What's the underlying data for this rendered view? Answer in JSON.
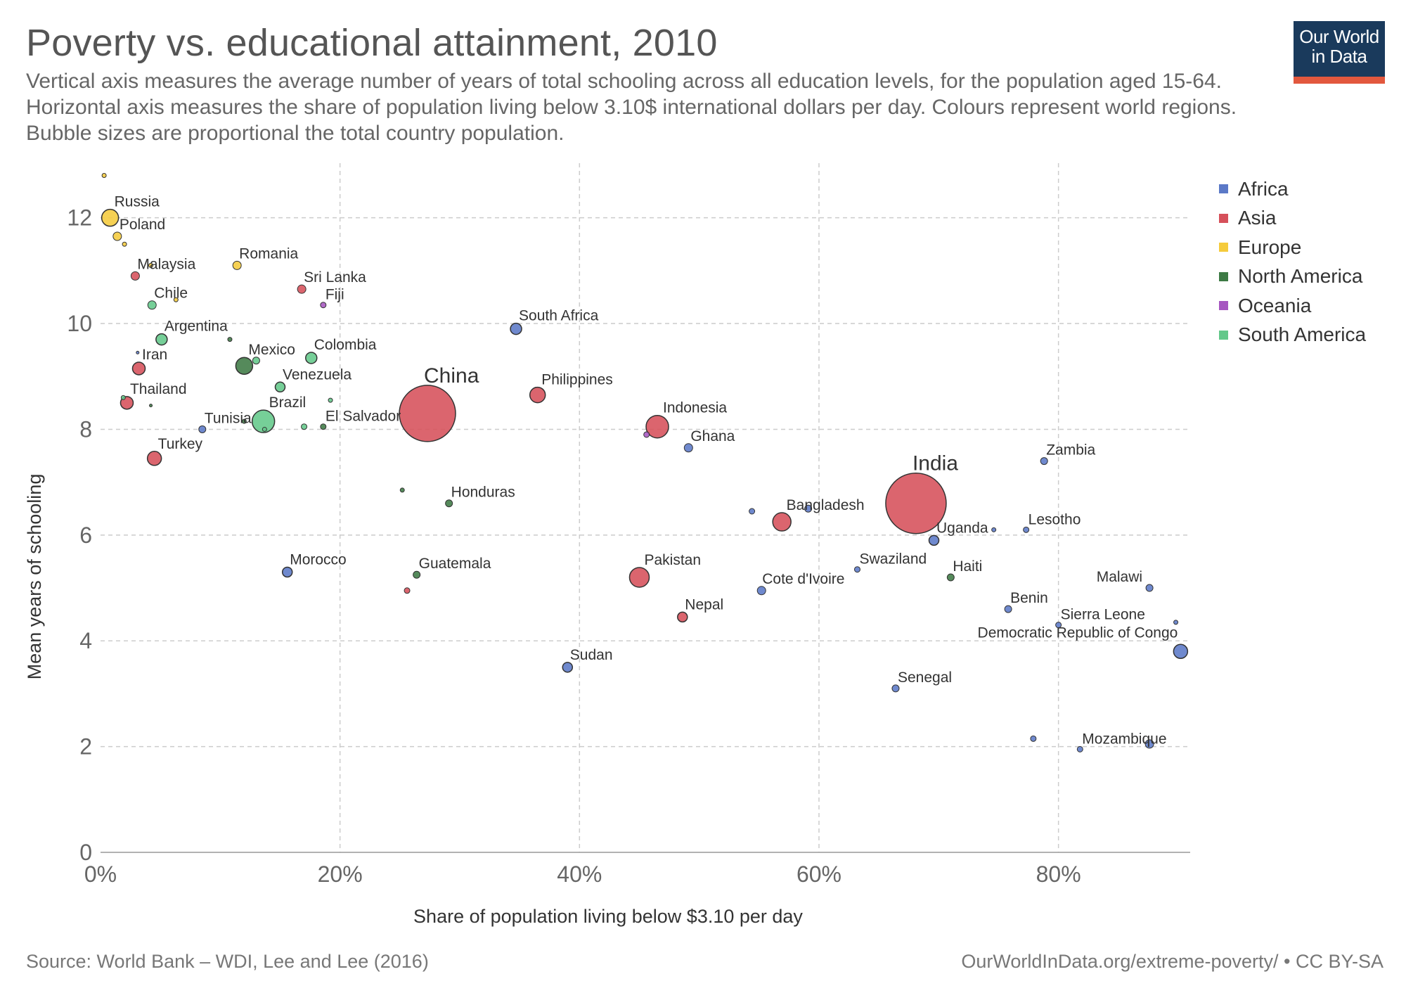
{
  "header": {
    "title": "Poverty vs. educational attainment, 2010",
    "subtitle": "Vertical axis measures the average number of years of total schooling across all education levels, for the population aged 15-64. Horizontal axis measures the share of population living below 3.10$ international dollars per day. Colours represent world regions. Bubble sizes are proportional the total country population.",
    "logo_line1": "Our World",
    "logo_line2": "in Data"
  },
  "footer": {
    "source": "Source: World Bank – WDI, Lee and Lee (2016)",
    "license": "OurWorldInData.org/extreme-poverty/ • CC BY-SA"
  },
  "colors": {
    "Africa": "#5b79c7",
    "Asia": "#d6505a",
    "Europe": "#f5cb3c",
    "North America": "#3d7a44",
    "Oceania": "#a656c0",
    "South America": "#63c88a"
  },
  "chart_data": {
    "type": "scatter",
    "title": "Poverty vs. educational attainment, 2010",
    "xlabel": "Share of population living below $3.10 per day",
    "ylabel": "Mean years of schooling",
    "xlim": [
      0,
      91
    ],
    "ylim": [
      0,
      12.9
    ],
    "x_ticks": [
      0,
      20,
      40,
      60,
      80
    ],
    "x_tick_labels": [
      "0%",
      "20%",
      "40%",
      "60%",
      "80%"
    ],
    "y_ticks": [
      0,
      2,
      4,
      6,
      8,
      10,
      12
    ],
    "y_tick_labels": [
      "0",
      "2",
      "4",
      "6",
      "8",
      "10",
      "12"
    ],
    "grid": true,
    "legend_position": "right",
    "legend": [
      "Africa",
      "Asia",
      "Europe",
      "North America",
      "Oceania",
      "South America"
    ],
    "points": [
      {
        "label": "",
        "x": 0.3,
        "y": 12.8,
        "region": "Europe",
        "r": 3
      },
      {
        "label": "Russia",
        "x": 0.8,
        "y": 12.0,
        "region": "Europe",
        "r": 12
      },
      {
        "label": "Poland",
        "x": 1.4,
        "y": 11.65,
        "region": "Europe",
        "r": 6
      },
      {
        "label": "",
        "x": 2.0,
        "y": 11.5,
        "region": "Europe",
        "r": 3
      },
      {
        "label": "Malaysia",
        "x": 2.9,
        "y": 10.9,
        "region": "Asia",
        "r": 6
      },
      {
        "label": "",
        "x": 4.2,
        "y": 11.1,
        "region": "Europe",
        "r": 3
      },
      {
        "label": "Romania",
        "x": 11.4,
        "y": 11.1,
        "region": "Europe",
        "r": 6
      },
      {
        "label": "Chile",
        "x": 4.3,
        "y": 10.35,
        "region": "South America",
        "r": 6
      },
      {
        "label": "",
        "x": 6.3,
        "y": 10.45,
        "region": "Europe",
        "r": 3
      },
      {
        "label": "Sri Lanka",
        "x": 16.8,
        "y": 10.65,
        "region": "Asia",
        "r": 6
      },
      {
        "label": "Fiji",
        "x": 18.6,
        "y": 10.35,
        "region": "Oceania",
        "r": 4
      },
      {
        "label": "Argentina",
        "x": 5.1,
        "y": 9.7,
        "region": "South America",
        "r": 8
      },
      {
        "label": "",
        "x": 10.8,
        "y": 9.7,
        "region": "North America",
        "r": 3
      },
      {
        "label": "",
        "x": 3.1,
        "y": 9.45,
        "region": "Africa",
        "r": 2
      },
      {
        "label": "Iran",
        "x": 3.2,
        "y": 9.15,
        "region": "Asia",
        "r": 9
      },
      {
        "label": "Mexico",
        "x": 12.0,
        "y": 9.2,
        "region": "North America",
        "r": 12
      },
      {
        "label": "",
        "x": 13.0,
        "y": 9.3,
        "region": "South America",
        "r": 5
      },
      {
        "label": "Colombia",
        "x": 17.6,
        "y": 9.35,
        "region": "South America",
        "r": 8
      },
      {
        "label": "Venezuela",
        "x": 15.0,
        "y": 8.8,
        "region": "South America",
        "r": 7
      },
      {
        "label": "",
        "x": 19.2,
        "y": 8.55,
        "region": "South America",
        "r": 3
      },
      {
        "label": "Thailand",
        "x": 2.2,
        "y": 8.5,
        "region": "Asia",
        "r": 9
      },
      {
        "label": "",
        "x": 1.9,
        "y": 8.6,
        "region": "South America",
        "r": 3
      },
      {
        "label": "",
        "x": 4.2,
        "y": 8.45,
        "region": "North America",
        "r": 2
      },
      {
        "label": "China",
        "x": 27.3,
        "y": 8.3,
        "region": "Asia",
        "r": 40
      },
      {
        "label": "Philippines",
        "x": 36.5,
        "y": 8.65,
        "region": "Asia",
        "r": 11
      },
      {
        "label": "Brazil",
        "x": 13.6,
        "y": 8.15,
        "region": "South America",
        "r": 16
      },
      {
        "label": "",
        "x": 12.0,
        "y": 8.15,
        "region": "North America",
        "r": 3
      },
      {
        "label": "Tunisia",
        "x": 8.5,
        "y": 8.0,
        "region": "Africa",
        "r": 5
      },
      {
        "label": "",
        "x": 13.7,
        "y": 8.0,
        "region": "South America",
        "r": 3
      },
      {
        "label": "",
        "x": 17.0,
        "y": 8.05,
        "region": "South America",
        "r": 4
      },
      {
        "label": "El Salvador",
        "x": 18.6,
        "y": 8.05,
        "region": "North America",
        "r": 4
      },
      {
        "label": "Indonesia",
        "x": 46.5,
        "y": 8.05,
        "region": "Asia",
        "r": 16
      },
      {
        "label": "",
        "x": 45.6,
        "y": 7.9,
        "region": "Oceania",
        "r": 4
      },
      {
        "label": "Ghana",
        "x": 49.1,
        "y": 7.65,
        "region": "Africa",
        "r": 6
      },
      {
        "label": "Turkey",
        "x": 4.5,
        "y": 7.45,
        "region": "Asia",
        "r": 10
      },
      {
        "label": "South Africa",
        "x": 34.7,
        "y": 9.9,
        "region": "Africa",
        "r": 8
      },
      {
        "label": "Zambia",
        "x": 78.8,
        "y": 7.4,
        "region": "Africa",
        "r": 5
      },
      {
        "label": "",
        "x": 25.2,
        "y": 6.85,
        "region": "North America",
        "r": 3
      },
      {
        "label": "Honduras",
        "x": 29.1,
        "y": 6.6,
        "region": "North America",
        "r": 5
      },
      {
        "label": "India",
        "x": 68.1,
        "y": 6.6,
        "region": "Asia",
        "r": 43
      },
      {
        "label": "Bangladesh",
        "x": 56.9,
        "y": 6.25,
        "region": "Asia",
        "r": 13
      },
      {
        "label": "",
        "x": 54.4,
        "y": 6.45,
        "region": "Africa",
        "r": 4
      },
      {
        "label": "",
        "x": 59.1,
        "y": 6.5,
        "region": "Africa",
        "r": 5
      },
      {
        "label": "Uganda",
        "x": 69.6,
        "y": 5.9,
        "region": "Africa",
        "r": 7
      },
      {
        "label": "",
        "x": 74.6,
        "y": 6.1,
        "region": "Africa",
        "r": 3
      },
      {
        "label": "Lesotho",
        "x": 77.3,
        "y": 6.1,
        "region": "Africa",
        "r": 4
      },
      {
        "label": "Morocco",
        "x": 15.6,
        "y": 5.3,
        "region": "Africa",
        "r": 7
      },
      {
        "label": "Guatemala",
        "x": 26.4,
        "y": 5.25,
        "region": "North America",
        "r": 5
      },
      {
        "label": "",
        "x": 25.6,
        "y": 4.95,
        "region": "Asia",
        "r": 4
      },
      {
        "label": "Pakistan",
        "x": 45.0,
        "y": 5.2,
        "region": "Asia",
        "r": 14
      },
      {
        "label": "Swaziland",
        "x": 63.2,
        "y": 5.35,
        "region": "Africa",
        "r": 4
      },
      {
        "label": "Haiti",
        "x": 71.0,
        "y": 5.2,
        "region": "North America",
        "r": 5
      },
      {
        "label": "Cote d'Ivoire",
        "x": 55.2,
        "y": 4.95,
        "region": "Africa",
        "r": 6
      },
      {
        "label": "Malawi",
        "x": 87.6,
        "y": 5.0,
        "region": "Africa",
        "r": 5
      },
      {
        "label": "Nepal",
        "x": 48.6,
        "y": 4.45,
        "region": "Asia",
        "r": 7
      },
      {
        "label": "Benin",
        "x": 75.8,
        "y": 4.6,
        "region": "Africa",
        "r": 5
      },
      {
        "label": "Sierra Leone",
        "x": 80.0,
        "y": 4.3,
        "region": "Africa",
        "r": 4
      },
      {
        "label": "",
        "x": 89.8,
        "y": 4.35,
        "region": "Africa",
        "r": 3
      },
      {
        "label": "Democratic Republic of Congo",
        "x": 90.2,
        "y": 3.8,
        "region": "Africa",
        "r": 10
      },
      {
        "label": "Sudan",
        "x": 39.0,
        "y": 3.5,
        "region": "Africa",
        "r": 7
      },
      {
        "label": "Senegal",
        "x": 66.4,
        "y": 3.1,
        "region": "Africa",
        "r": 5
      },
      {
        "label": "",
        "x": 77.9,
        "y": 2.15,
        "region": "Africa",
        "r": 4
      },
      {
        "label": "Mozambique",
        "x": 81.8,
        "y": 1.95,
        "region": "Africa",
        "r": 4
      },
      {
        "label": "",
        "x": 87.6,
        "y": 2.05,
        "region": "Africa",
        "r": 6
      }
    ]
  }
}
